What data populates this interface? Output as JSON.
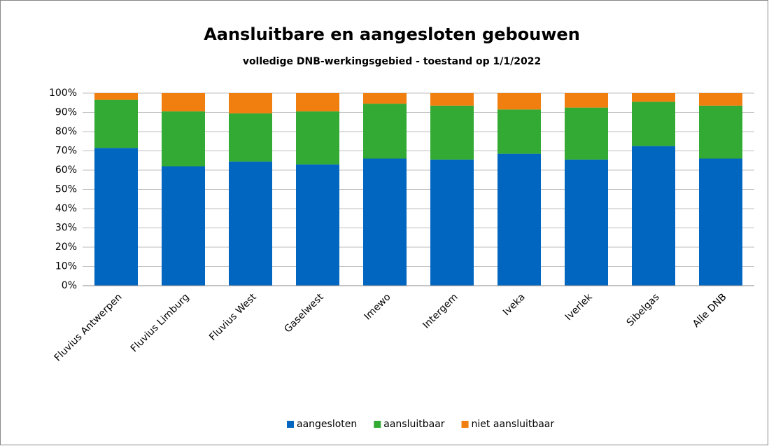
{
  "chart_data": {
    "type": "stacked_bar",
    "title": "Aansluitbare en aangesloten gebouwen",
    "subtitle": "volledige DNB-werkingsgebied - toestand op 1/1/2022",
    "categories": [
      "Fluvius Antwerpen",
      "Fluvius Limburg",
      "Fluvius West",
      "Gaselwest",
      "Imewo",
      "Intergem",
      "Iveka",
      "Iverlek",
      "Sibelgas",
      "Alle DNB"
    ],
    "series": [
      {
        "name": "aangesloten",
        "color": "#0066c0",
        "values": [
          71.5,
          62,
          64.5,
          63,
          66,
          65.5,
          68.5,
          65.5,
          72.5,
          66
        ]
      },
      {
        "name": "aansluitbaar",
        "color": "#33aa33",
        "values": [
          25,
          28.5,
          25,
          27.5,
          28.5,
          28,
          23,
          27,
          23,
          27.5
        ]
      },
      {
        "name": "niet aansluitbaar",
        "color": "#f07f0f",
        "values": [
          3.5,
          9.5,
          10.5,
          9.5,
          5.5,
          6.5,
          8.5,
          7.5,
          4.5,
          6.5
        ]
      }
    ],
    "ylim": [
      0,
      100
    ],
    "yticks": [
      {
        "value": 0,
        "label": "0%"
      },
      {
        "value": 10,
        "label": "10%"
      },
      {
        "value": 20,
        "label": "20%"
      },
      {
        "value": 30,
        "label": "30%"
      },
      {
        "value": 40,
        "label": "40%"
      },
      {
        "value": 50,
        "label": "50%"
      },
      {
        "value": 60,
        "label": "60%"
      },
      {
        "value": 70,
        "label": "70%"
      },
      {
        "value": 80,
        "label": "80%"
      },
      {
        "value": 90,
        "label": "90%"
      },
      {
        "value": 100,
        "label": "100%"
      }
    ],
    "grid": true,
    "legend": "bottom"
  }
}
